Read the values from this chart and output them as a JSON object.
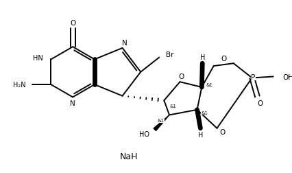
{
  "bg_color": "#ffffff",
  "lc": "#000000",
  "lw": 1.4,
  "fig_w": 4.27,
  "fig_h": 2.53,
  "dpi": 100,
  "xlim": [
    0,
    427
  ],
  "ylim": [
    0,
    253
  ],
  "NaH": "NaH",
  "NaH_x": 195,
  "NaH_y": 42
}
